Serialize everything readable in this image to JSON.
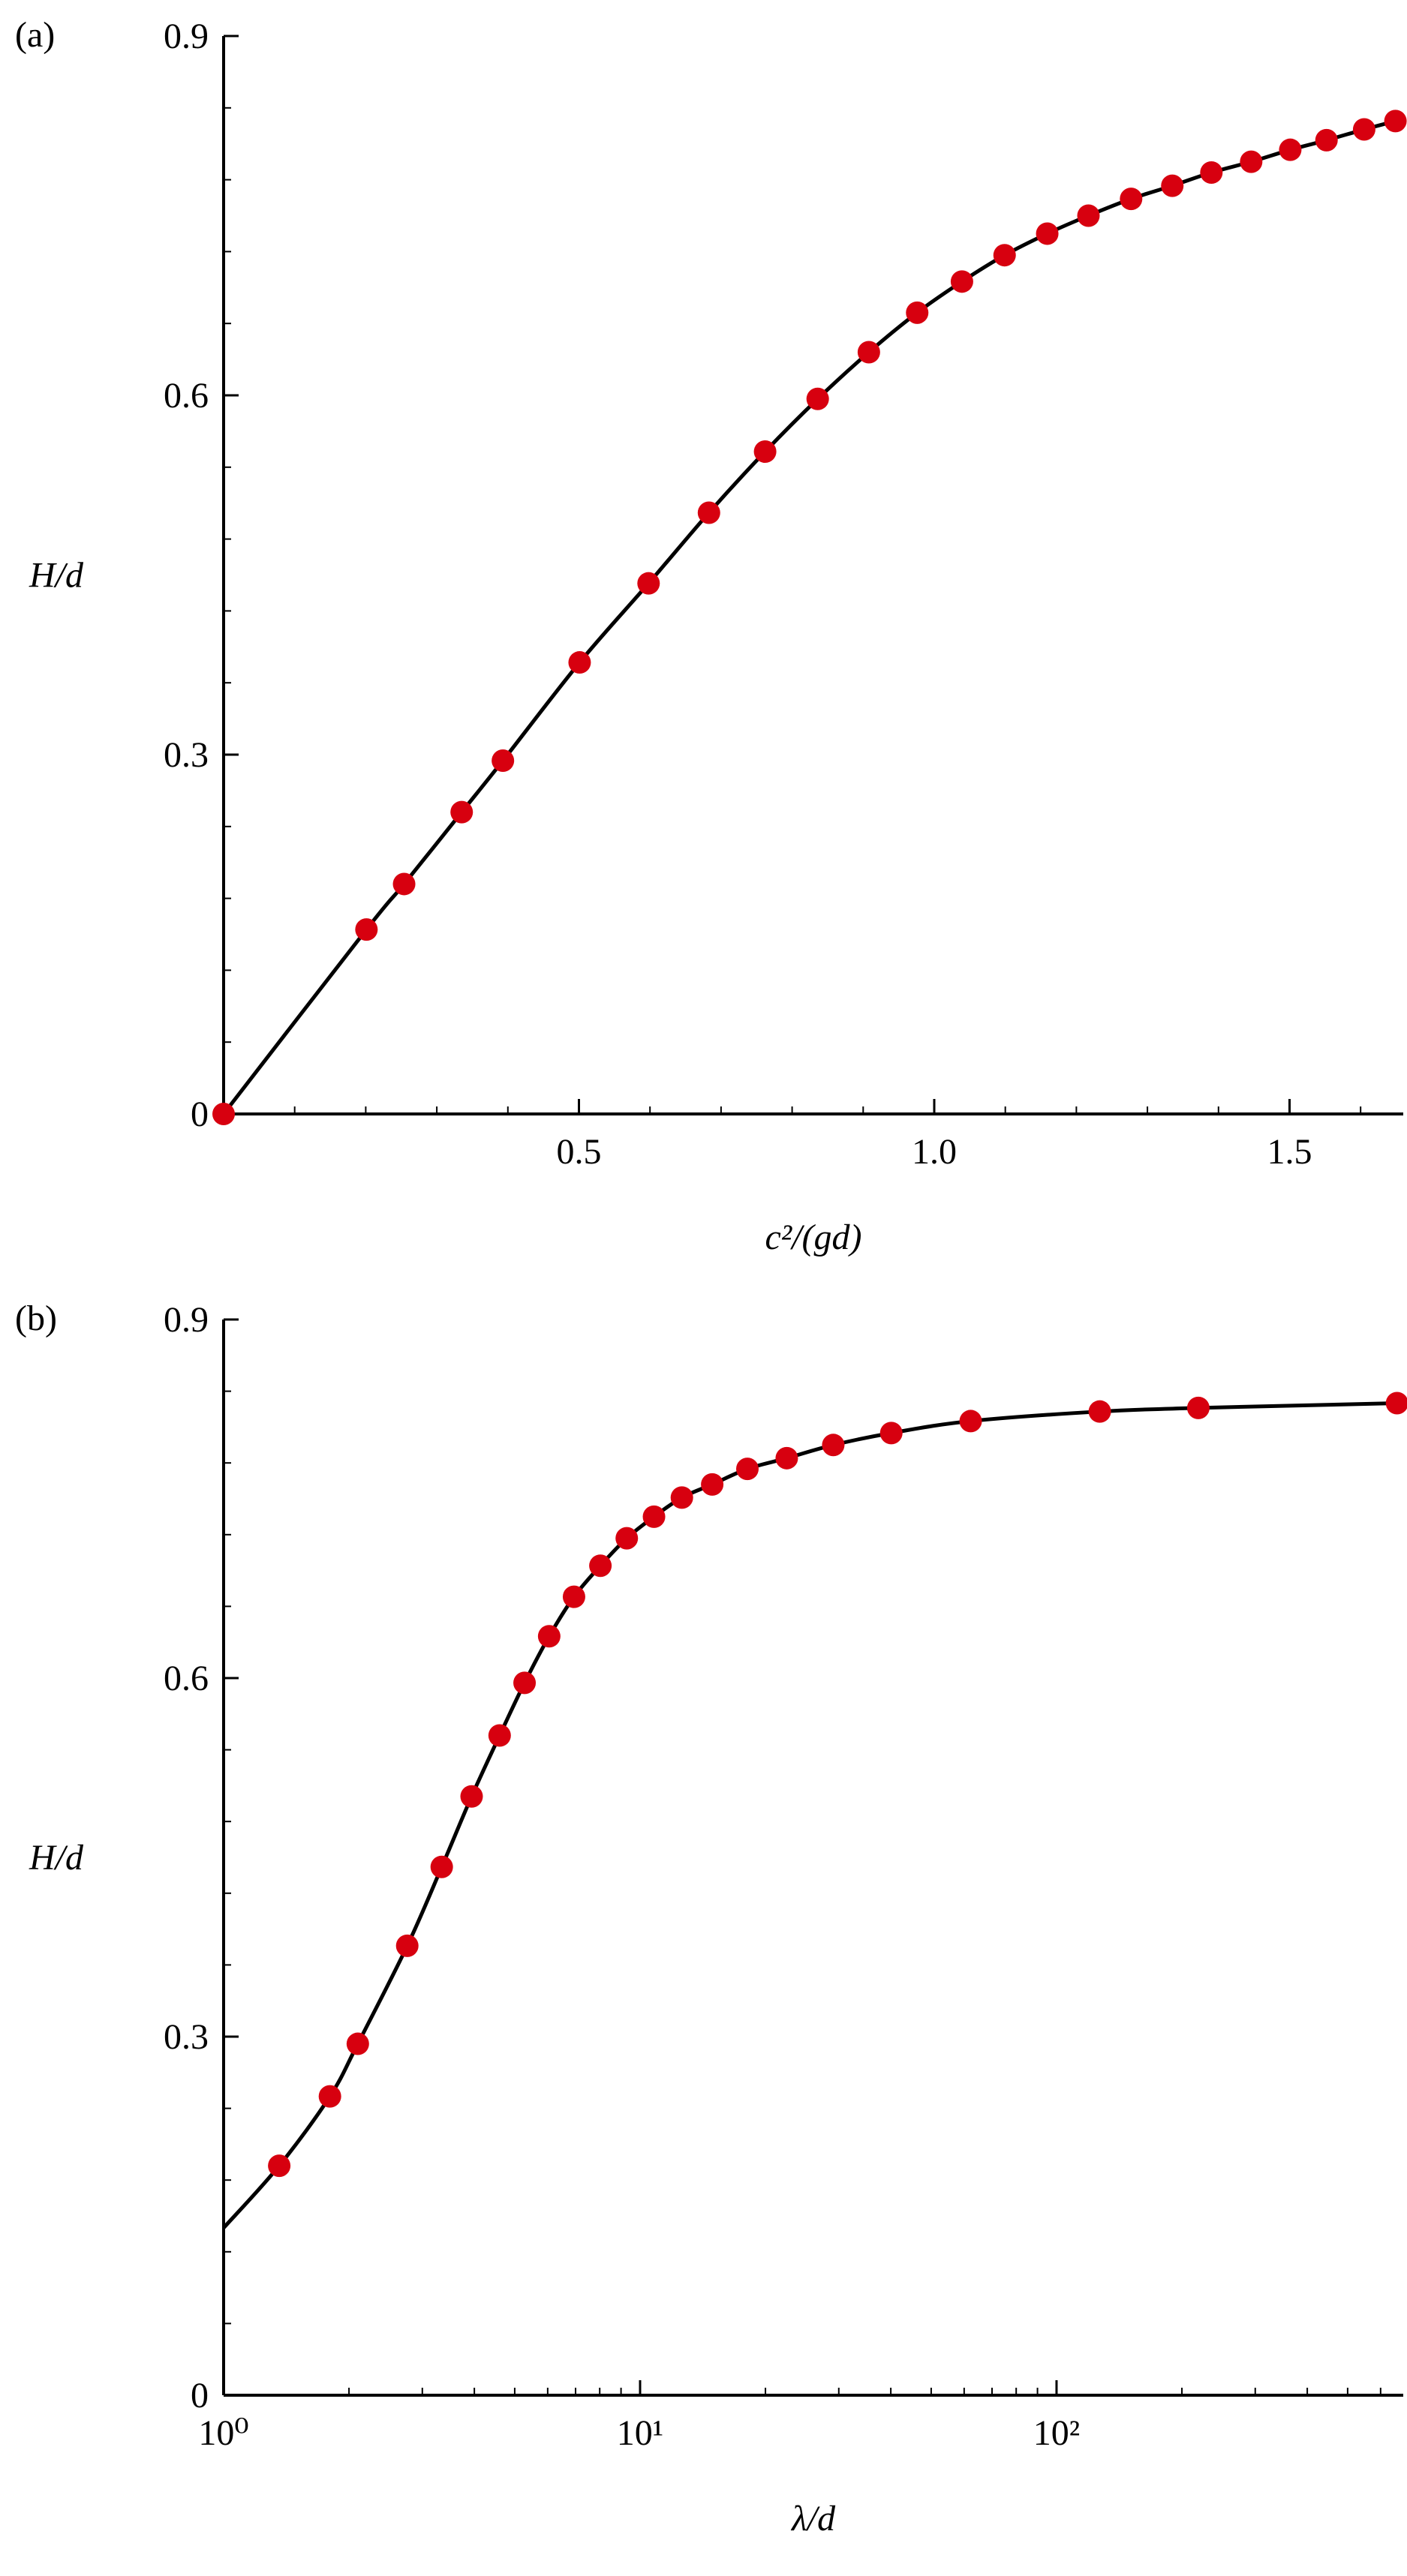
{
  "chart_data": [
    {
      "type": "line",
      "panel_label": "(a)",
      "x_label": "c²/(gd)",
      "y_label": "H/d",
      "xlim": [
        0,
        1.66
      ],
      "ylim": [
        0,
        0.9
      ],
      "xticks": [
        0.5,
        {
          "value": 1,
          "label": "1.0"
        },
        1.5
      ],
      "yticks": [
        0,
        0.3,
        0.6,
        0.9
      ],
      "minor_divisions": 5,
      "xscale": "linear",
      "series": [
        {
          "style": "line",
          "color": "#000000",
          "x": [
            0,
            0.201,
            0.254,
            0.335,
            0.393,
            0.501,
            0.598,
            0.683,
            0.762,
            0.836,
            0.908,
            0.976,
            1.039,
            1.099,
            1.159,
            1.217,
            1.277,
            1.335,
            1.39,
            1.446,
            1.501,
            1.552,
            1.605,
            1.649
          ],
          "values": [
            0,
            0.154,
            0.192,
            0.252,
            0.295,
            0.377,
            0.443,
            0.502,
            0.553,
            0.597,
            0.636,
            0.669,
            0.695,
            0.717,
            0.735,
            0.75,
            0.764,
            0.775,
            0.786,
            0.795,
            0.805,
            0.813,
            0.822,
            0.829
          ]
        },
        {
          "style": "marker",
          "color": "#d7000f",
          "x": [
            0,
            0.201,
            0.254,
            0.335,
            0.393,
            0.501,
            0.598,
            0.683,
            0.762,
            0.836,
            0.908,
            0.976,
            1.039,
            1.099,
            1.159,
            1.217,
            1.277,
            1.335,
            1.39,
            1.446,
            1.501,
            1.552,
            1.605,
            1.649
          ],
          "values": [
            0,
            0.154,
            0.192,
            0.252,
            0.295,
            0.377,
            0.443,
            0.502,
            0.553,
            0.597,
            0.636,
            0.669,
            0.695,
            0.717,
            0.735,
            0.75,
            0.764,
            0.775,
            0.786,
            0.795,
            0.805,
            0.813,
            0.822,
            0.829
          ]
        }
      ]
    },
    {
      "type": "line",
      "panel_label": "(b)",
      "x_label": "λ/d",
      "y_label": "H/d",
      "xlim": [
        1,
        680
      ],
      "ylim": [
        0,
        0.9
      ],
      "xticks": [
        {
          "value": 1,
          "label": "10⁰"
        },
        {
          "value": 10,
          "label": "10¹"
        },
        {
          "value": 100,
          "label": "10²"
        }
      ],
      "yticks": [
        0,
        0.3,
        0.6,
        0.9
      ],
      "minor_divisions": 5,
      "xscale": "log",
      "series": [
        {
          "style": "line",
          "color": "#000000",
          "x": [
            1,
            1.36,
            1.8,
            2.1,
            2.76,
            3.34,
            3.94,
            4.6,
            5.28,
            6.05,
            6.94,
            8.03,
            9.29,
            10.8,
            12.6,
            14.9,
            18.1,
            22.5,
            29.1,
            40.1,
            62.2,
            127,
            219,
            657
          ],
          "values": [
            0.14,
            0.192,
            0.25,
            0.294,
            0.376,
            0.442,
            0.501,
            0.552,
            0.596,
            0.635,
            0.668,
            0.694,
            0.717,
            0.735,
            0.751,
            0.762,
            0.775,
            0.784,
            0.795,
            0.805,
            0.815,
            0.823,
            0.826,
            0.83
          ]
        },
        {
          "style": "marker",
          "color": "#d7000f",
          "x": [
            1.36,
            1.8,
            2.1,
            2.76,
            3.34,
            3.94,
            4.6,
            5.28,
            6.05,
            6.94,
            8.03,
            9.29,
            10.8,
            12.6,
            14.9,
            18.1,
            22.5,
            29.1,
            40.1,
            62.2,
            127,
            219,
            657
          ],
          "values": [
            0.192,
            0.25,
            0.294,
            0.376,
            0.442,
            0.501,
            0.552,
            0.596,
            0.635,
            0.668,
            0.694,
            0.717,
            0.735,
            0.751,
            0.762,
            0.775,
            0.784,
            0.795,
            0.805,
            0.815,
            0.823,
            0.826,
            0.83
          ]
        }
      ]
    }
  ]
}
